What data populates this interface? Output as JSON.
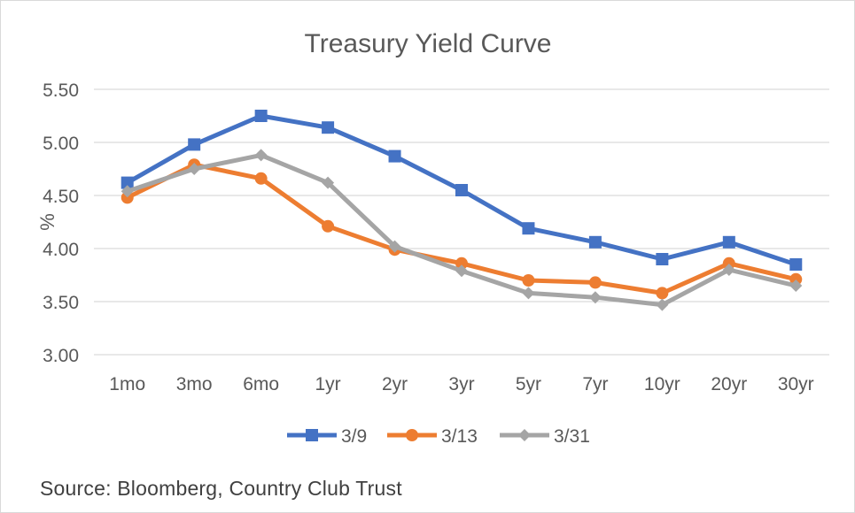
{
  "chart_data": {
    "type": "line",
    "title": "Treasury Yield Curve",
    "xlabel": "",
    "ylabel": "%",
    "ylim": [
      3.0,
      5.5
    ],
    "yticks": [
      "3.00",
      "3.50",
      "4.00",
      "4.50",
      "5.00",
      "5.50"
    ],
    "ytick_values": [
      3.0,
      3.5,
      4.0,
      4.5,
      5.0,
      5.5
    ],
    "grid": true,
    "legend_position": "bottom",
    "categories": [
      "1mo",
      "3mo",
      "6mo",
      "1yr",
      "2yr",
      "3yr",
      "5yr",
      "7yr",
      "10yr",
      "20yr",
      "30yr"
    ],
    "series": [
      {
        "name": "3/9",
        "color": "#4472c4",
        "marker": "square",
        "values": [
          4.62,
          4.98,
          5.25,
          5.14,
          4.87,
          4.55,
          4.19,
          4.06,
          3.9,
          4.06,
          3.85
        ]
      },
      {
        "name": "3/13",
        "color": "#ed7d31",
        "marker": "circle",
        "values": [
          4.48,
          4.79,
          4.66,
          4.21,
          3.99,
          3.86,
          3.7,
          3.68,
          3.58,
          3.86,
          3.71
        ]
      },
      {
        "name": "3/31",
        "color": "#a5a5a5",
        "marker": "diamond",
        "values": [
          4.54,
          4.75,
          4.88,
          4.62,
          4.02,
          3.79,
          3.58,
          3.54,
          3.47,
          3.8,
          3.65
        ]
      }
    ]
  },
  "footer": {
    "source": "Source: Bloomberg, Country Club Trust"
  }
}
